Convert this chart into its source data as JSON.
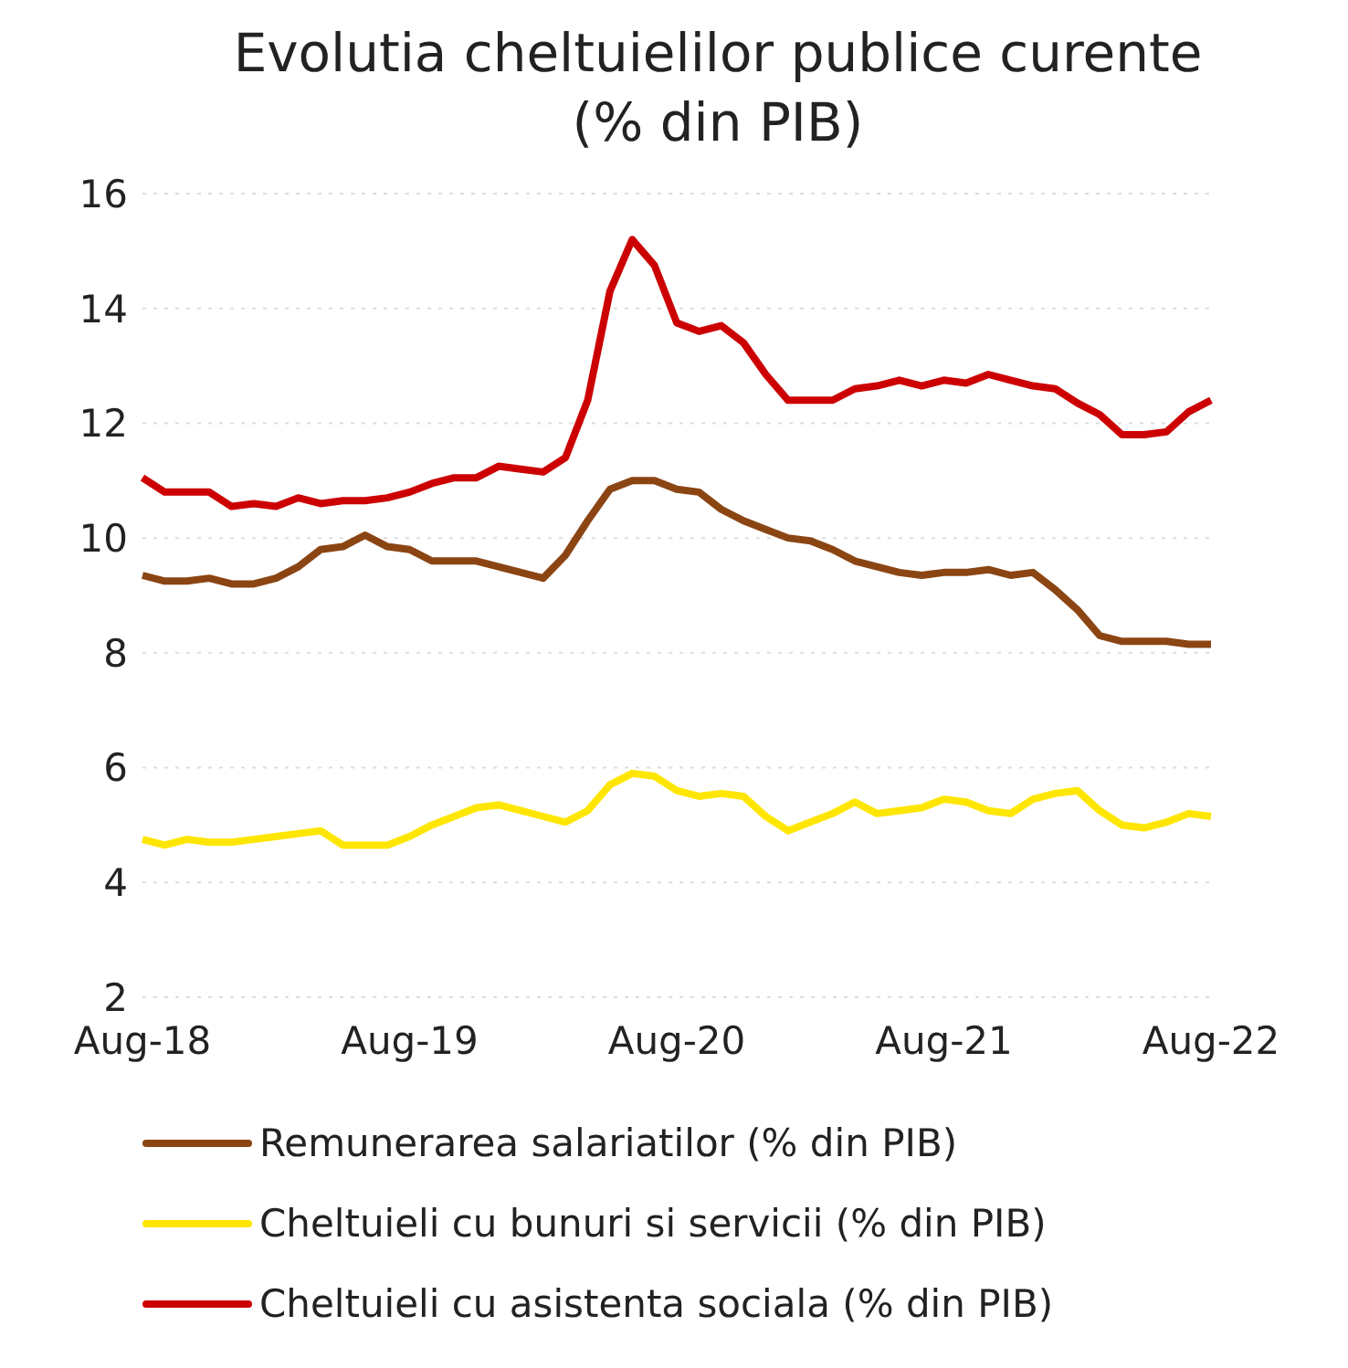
{
  "chart_data": {
    "type": "line",
    "title": "Evolutia cheltuielilor publice curente (% din PIB)",
    "categories": [
      "Aug-18",
      null,
      null,
      null,
      null,
      null,
      null,
      null,
      null,
      null,
      null,
      null,
      "Aug-19",
      null,
      null,
      null,
      null,
      null,
      null,
      null,
      null,
      null,
      null,
      null,
      "Aug-20",
      null,
      null,
      null,
      null,
      null,
      null,
      null,
      null,
      null,
      null,
      null,
      "Aug-21",
      null,
      null,
      null,
      null,
      null,
      null,
      null,
      null,
      null,
      null,
      null,
      "Aug-22"
    ],
    "series": [
      {
        "name": "Remunerarea salariatilor (% din PIB)",
        "color": "#8b4513",
        "values": [
          9.35,
          9.25,
          9.25,
          9.3,
          9.2,
          9.2,
          9.3,
          9.5,
          9.8,
          9.85,
          10.05,
          9.85,
          9.8,
          9.6,
          9.6,
          9.6,
          9.5,
          9.4,
          9.3,
          9.7,
          10.3,
          10.85,
          11.0,
          11.0,
          10.85,
          10.8,
          10.5,
          10.3,
          10.15,
          10.0,
          9.95,
          9.8,
          9.6,
          9.5,
          9.4,
          9.35,
          9.4,
          9.4,
          9.45,
          9.35,
          9.4,
          9.1,
          8.75,
          8.3,
          8.2,
          8.2,
          8.2,
          8.15,
          8.15
        ]
      },
      {
        "name": "Cheltuieli cu bunuri si servicii (% din PIB)",
        "color": "#ffe600",
        "values": [
          4.75,
          4.65,
          4.75,
          4.7,
          4.7,
          4.75,
          4.8,
          4.85,
          4.9,
          4.65,
          4.65,
          4.65,
          4.8,
          5.0,
          5.15,
          5.3,
          5.35,
          5.25,
          5.15,
          5.05,
          5.25,
          5.7,
          5.9,
          5.85,
          5.6,
          5.5,
          5.55,
          5.5,
          5.15,
          4.9,
          5.05,
          5.2,
          5.4,
          5.2,
          5.25,
          5.3,
          5.45,
          5.4,
          5.25,
          5.2,
          5.45,
          5.55,
          5.6,
          5.25,
          5.0,
          4.95,
          5.05,
          5.2,
          5.15
        ]
      },
      {
        "name": "Cheltuieli cu asistenta sociala (% din PIB)",
        "color": "#cc0000",
        "values": [
          11.05,
          10.8,
          10.8,
          10.8,
          10.55,
          10.6,
          10.55,
          10.7,
          10.6,
          10.65,
          10.65,
          10.7,
          10.8,
          10.95,
          11.05,
          11.05,
          11.25,
          11.2,
          11.15,
          11.4,
          12.4,
          14.3,
          15.2,
          14.75,
          13.75,
          13.6,
          13.7,
          13.4,
          12.85,
          12.4,
          12.4,
          12.4,
          12.6,
          12.65,
          12.75,
          12.65,
          12.75,
          12.7,
          12.85,
          12.75,
          12.65,
          12.6,
          12.35,
          12.15,
          11.8,
          11.8,
          11.85,
          12.2,
          12.4
        ]
      }
    ],
    "ylim": [
      2,
      16
    ],
    "yticks": [
      2,
      4,
      6,
      8,
      10,
      12,
      14,
      16
    ],
    "grid": "y",
    "legend": "bottom",
    "marker": "none",
    "line_style": "solid"
  }
}
